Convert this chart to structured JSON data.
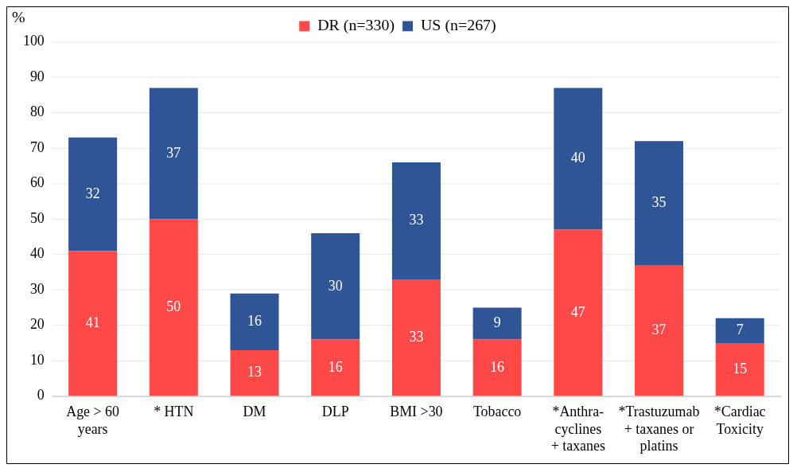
{
  "chart_data": {
    "type": "bar",
    "ylabel": "%",
    "categories": [
      "Age > 60\nyears",
      "* HTN",
      "DM",
      "DLP",
      "BMI >30",
      "Tobacco",
      "*Anthra-\ncyclines\n+ taxanes",
      "*Trastuzumab\n+ taxanes or\nplatins",
      "*Cardiac\nToxicity"
    ],
    "series": [
      {
        "name": "DR (n=330)",
        "color": "#ff4949",
        "values": [
          41,
          50,
          13,
          16,
          33,
          16,
          47,
          37,
          15
        ]
      },
      {
        "name": "US (n=267)",
        "color": "#2f5597",
        "values": [
          32,
          37,
          16,
          30,
          33,
          9,
          40,
          35,
          7
        ]
      }
    ],
    "stacked": true,
    "ylim": [
      0,
      100
    ],
    "yticks": [
      0,
      10,
      20,
      30,
      40,
      50,
      60,
      70,
      80,
      90,
      100
    ],
    "grid": "y",
    "legend": "top",
    "data_labels": true
  }
}
